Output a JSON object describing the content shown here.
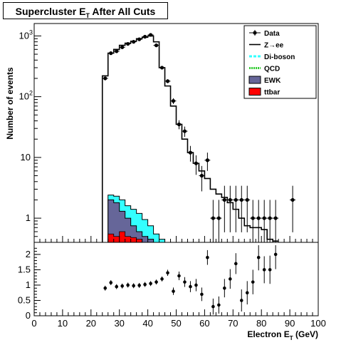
{
  "title": {
    "main": "Supercluster E",
    "sub": "T",
    "tail": " After All Cuts"
  },
  "xaxis": {
    "label": "Electron E",
    "label_sub": "T",
    "label_tail": " (GeV)",
    "ticks": [
      "0",
      "10",
      "20",
      "30",
      "40",
      "50",
      "60",
      "70",
      "80",
      "90",
      "100"
    ]
  },
  "yaxis_top": {
    "label": "Number of events",
    "ticks": [
      "1",
      "10",
      "10",
      "10"
    ],
    "tick_sup": [
      "",
      "",
      "2",
      "3"
    ]
  },
  "ratio_ticks": [
    "0",
    "0.5",
    "1",
    "1.5",
    "2"
  ],
  "legend": [
    {
      "label": "Data",
      "key": "data"
    },
    {
      "label": "Z→ee",
      "key": "zee"
    },
    {
      "label": "Di-boson",
      "key": "diboson"
    },
    {
      "label": "QCD",
      "key": "qcd"
    },
    {
      "label": "EWK",
      "key": "ewk"
    },
    {
      "label": "ttbar",
      "key": "ttbar"
    }
  ],
  "colors": {
    "diboson": "#33ffff",
    "qcd": "#33cc33",
    "ewk": "#666699",
    "ttbar": "#ff0000",
    "zee": "#000000",
    "data": "#000000"
  },
  "chart_data": {
    "type": "histogram",
    "x_range": [
      0,
      100
    ],
    "y_range": [
      0.4,
      1600
    ],
    "y_scale": "log",
    "ratio_range": [
      0,
      2.3
    ],
    "bin_width": 2,
    "series": [
      {
        "name": "Z→ee",
        "x": [
          25,
          27,
          29,
          31,
          33,
          35,
          37,
          39,
          41,
          43,
          45,
          47,
          49,
          51,
          53,
          55,
          57,
          59,
          61,
          63,
          65,
          67,
          69,
          71,
          73,
          75,
          77,
          79,
          81,
          83,
          85
        ],
        "values": [
          220,
          520,
          600,
          700,
          760,
          820,
          900,
          950,
          1000,
          800,
          300,
          150,
          70,
          35,
          20,
          12,
          8,
          6,
          4.5,
          3,
          2.5,
          2.2,
          1.8,
          1.4,
          1.0,
          0.75,
          0.7,
          0.7,
          0.65,
          0.45,
          0.42
        ]
      },
      {
        "name": "Di-boson",
        "x": [
          25,
          27,
          29,
          31,
          33,
          35,
          37,
          39,
          41,
          43,
          45,
          47
        ],
        "values": [
          0.4,
          2.4,
          2.3,
          2.0,
          1.6,
          1.4,
          1.2,
          0.95,
          0.75,
          0.55,
          0.45,
          0.4
        ]
      },
      {
        "name": "EWK",
        "x": [
          25,
          27,
          29,
          31,
          33,
          35,
          37,
          39,
          41,
          43
        ],
        "values": [
          0.4,
          2.0,
          1.8,
          1.3,
          1.0,
          0.75,
          0.6,
          0.5,
          0.45,
          0.4
        ]
      },
      {
        "name": "ttbar",
        "x": [
          27,
          29,
          31,
          33,
          35,
          37
        ],
        "values": [
          0.55,
          0.5,
          0.6,
          0.5,
          0.48,
          0.45
        ]
      },
      {
        "name": "Data",
        "x": [
          25,
          27,
          29,
          31,
          33,
          35,
          37,
          39,
          41,
          43,
          45,
          47,
          49,
          51,
          53,
          55,
          57,
          59,
          61,
          63,
          65,
          67,
          69,
          71,
          73,
          75,
          77,
          79,
          81,
          83,
          85,
          91
        ],
        "values": [
          200,
          520,
          560,
          650,
          740,
          800,
          880,
          970,
          1040,
          700,
          300,
          180,
          85,
          35,
          27,
          12,
          8,
          5,
          9,
          1,
          1,
          2,
          2,
          2,
          2,
          2,
          1,
          1,
          1,
          1,
          1,
          2
        ]
      }
    ],
    "ratio": {
      "x": [
        25,
        27,
        29,
        31,
        33,
        35,
        37,
        39,
        41,
        43,
        45,
        47,
        49,
        51,
        53,
        55,
        57,
        59,
        61,
        63,
        65,
        67,
        69,
        71,
        73,
        75,
        77,
        79,
        81,
        83,
        85
      ],
      "values": [
        0.9,
        1.08,
        0.95,
        0.97,
        1.0,
        0.98,
        0.99,
        1.02,
        1.05,
        1.1,
        1.2,
        1.4,
        0.8,
        1.3,
        1.1,
        0.95,
        1.0,
        0.7,
        1.9,
        0.3,
        0.35,
        0.9,
        1.2,
        1.7,
        0.5,
        0.75,
        1.1,
        1.9,
        1.5,
        1.5,
        2.0
      ]
    }
  }
}
